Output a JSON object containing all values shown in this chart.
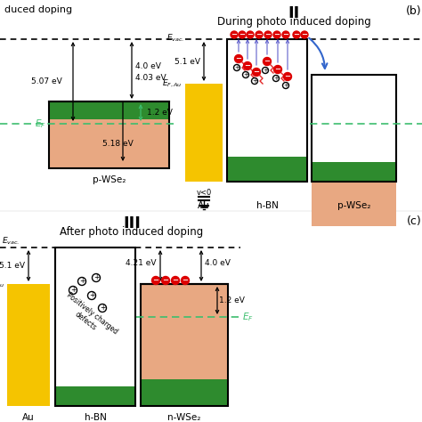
{
  "bg_color": "#ffffff",
  "gold_color": "#F5C400",
  "green_color": "#2E8B2E",
  "orange_color": "#E8A882",
  "red_color": "#DD0000",
  "ef_color": "#3DBE6E",
  "panel_b_label": "(b)",
  "panel_c_label": "(c)",
  "roman_II": "II",
  "roman_III": "III",
  "title_II": "During photo induced doping",
  "title_III": "After photo induced doping",
  "partial_title": "duced doping",
  "label_Au": "Au",
  "label_hBN": "h-BN",
  "label_pWSe2": "p-WSe₂",
  "label_nWSe2": "n-WSe₂",
  "label_51_II": "5.1 eV",
  "label_51_III": "5.1 eV",
  "label_421": "4.21 eV",
  "label_40_II": "4.0 eV",
  "label_40_III": "4.0 eV",
  "label_12_II": "1.2 eV",
  "label_12_III": "1.2 eV",
  "label_507": "5.07 eV",
  "label_403": "4.03 eV",
  "label_518": "5.18 eV",
  "label_v0": "v<0"
}
